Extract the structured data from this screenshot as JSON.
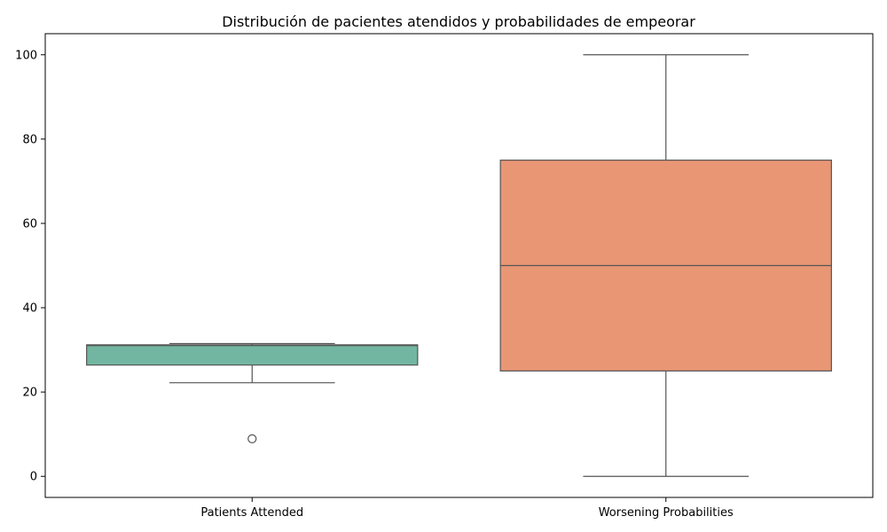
{
  "chart_data": {
    "type": "box",
    "title": "Distribución de pacientes atendidos y probabilidades de empeorar",
    "xlabel": "",
    "ylabel": "",
    "ylim": [
      -5,
      105
    ],
    "yticks": [
      0,
      20,
      40,
      60,
      80,
      100
    ],
    "grid": false,
    "categories": [
      "Patients Attended",
      "Worsening Probabilities"
    ],
    "boxes": [
      {
        "category": "Patients Attended",
        "color": "#72b6a1",
        "whisker_low": 22.2,
        "q1": 26.4,
        "median": 31.0,
        "q3": 31.2,
        "whisker_high": 31.5,
        "outliers": [
          8.9
        ]
      },
      {
        "category": "Worsening Probabilities",
        "color": "#e99675",
        "whisker_low": 0,
        "q1": 25,
        "median": 50,
        "q3": 75,
        "whisker_high": 100,
        "outliers": []
      }
    ],
    "line_color": "#555555"
  }
}
